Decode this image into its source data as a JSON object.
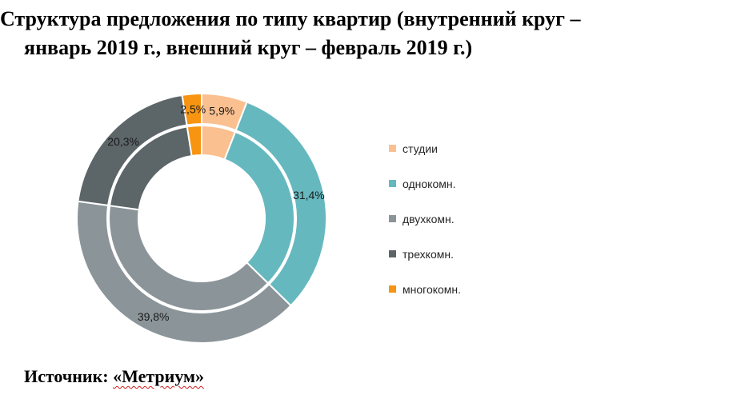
{
  "title": {
    "line1": "Структура предложения по типу квартир (внутренний круг –",
    "line2": "январь 2019 г., внешний круг – февраль 2019 г.)"
  },
  "source": {
    "prefix": "Источник: ",
    "name": "«Метриум»"
  },
  "chart_data": {
    "type": "doughnut",
    "title": "Структура предложения по типу квартир (внутренний круг – январь 2019 г., внешний круг – февраль 2019 г.)",
    "categories": [
      "студии",
      "однокомн.",
      "двухкомн.",
      "трехкомн.",
      "многокомн."
    ],
    "colors": [
      "#fac090",
      "#66b8bf",
      "#8b9599",
      "#5c6568",
      "#f79412"
    ],
    "series": [
      {
        "ring": "inner",
        "values": [
          5.9,
          31.4,
          39.8,
          20.3,
          2.5
        ]
      },
      {
        "ring": "outer",
        "values": [
          5.9,
          31.4,
          39.8,
          20.3,
          2.5
        ]
      }
    ],
    "data_labels": [
      "5,9%",
      "31,4%",
      "39,8%",
      "20,3%",
      "2,5%"
    ],
    "legend": {
      "position": "right",
      "items": [
        "студии",
        "однокомн.",
        "двухкомн.",
        "трехкомн.",
        "многокомн."
      ]
    }
  }
}
